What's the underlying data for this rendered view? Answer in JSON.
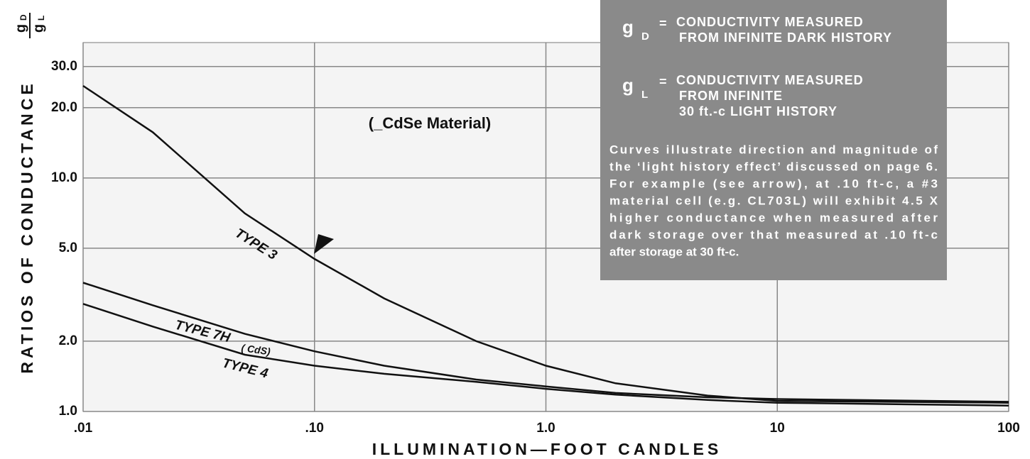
{
  "chart_data": {
    "type": "line",
    "y_label": "RATIOS OF CONDUCTANCE",
    "y_label_fraction": {
      "numerator": "g",
      "numerator_sub": "D",
      "denominator": "g",
      "denominator_sub": "L"
    },
    "x_label": "ILLUMINATION—FOOT CANDLES",
    "annotation": "(_CdSe Material)",
    "series_note": "( CdS)",
    "x": [
      0.01,
      0.02,
      0.05,
      0.1,
      0.2,
      0.5,
      1,
      2,
      5,
      10,
      100
    ],
    "series": [
      {
        "name": "TYPE 3",
        "color": "#111111",
        "values": [
          24.8,
          15.7,
          7.05,
          4.5,
          3.05,
          2.0,
          1.57,
          1.32,
          1.17,
          1.11,
          1.09
        ]
      },
      {
        "name": "TYPE 7H",
        "color": "#111111",
        "values": [
          3.56,
          2.85,
          2.15,
          1.81,
          1.57,
          1.37,
          1.28,
          1.2,
          1.15,
          1.13,
          1.1
        ]
      },
      {
        "name": "TYPE 4",
        "color": "#111111",
        "values": [
          2.89,
          2.31,
          1.75,
          1.57,
          1.45,
          1.34,
          1.25,
          1.18,
          1.12,
          1.09,
          1.06
        ]
      }
    ],
    "xlim": [
      0.01,
      100
    ],
    "ylim": [
      1,
      38
    ],
    "xscale": "log",
    "yscale": "log",
    "grid": true,
    "xticks": [
      {
        "value": 0.01,
        "label": ".01"
      },
      {
        "value": 0.1,
        "label": ".10"
      },
      {
        "value": 1,
        "label": "1.0"
      },
      10,
      100
    ],
    "yticks": [
      {
        "value": 1,
        "label": "1.0"
      },
      {
        "value": 2,
        "label": "2.0"
      },
      {
        "value": 5,
        "label": "5.0"
      },
      {
        "value": 10,
        "label": "10.0"
      },
      {
        "value": 20,
        "label": "20.0"
      },
      {
        "value": 30,
        "label": "30.0"
      }
    ],
    "definitions": [
      {
        "symbol": "g",
        "subscript": "D",
        "equals": "=",
        "lines": [
          "CONDUCTIVITY MEASURED",
          "FROM INFINITE DARK HISTORY"
        ]
      },
      {
        "symbol": "g",
        "subscript": "L",
        "equals": "=",
        "lines": [
          "CONDUCTIVITY MEASURED",
          "FROM INFINITE",
          "30 ft.-c LIGHT HISTORY"
        ]
      }
    ],
    "note": [
      "Curves illustrate direction and magnitude of",
      "the ‘light history effect’ discussed on page 6.",
      "For example (see arrow), at .10 ft-c, a #3",
      "material cell (e.g. CL703L) will exhibit 4.5 X",
      "higher conductance when measured after",
      "dark storage over that measured at .10 ft-c",
      "after storage at 30 ft-c."
    ]
  }
}
